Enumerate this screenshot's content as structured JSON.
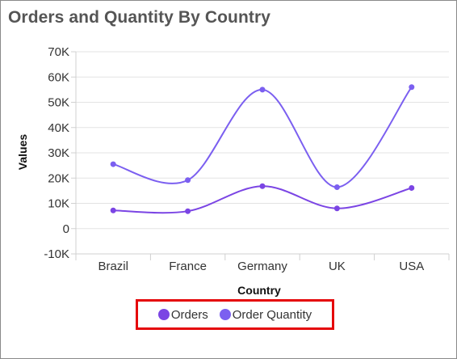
{
  "title": "Orders and Quantity By Country",
  "chart_data": {
    "type": "line",
    "title": "Orders and Quantity By Country",
    "xlabel": "Country",
    "ylabel": "Values",
    "categories": [
      "Brazil",
      "France",
      "Germany",
      "UK",
      "USA"
    ],
    "ylim": [
      -10000,
      70000
    ],
    "yticks": [
      -10000,
      0,
      10000,
      20000,
      30000,
      40000,
      50000,
      60000,
      70000
    ],
    "ytick_labels": [
      "-10K",
      "0",
      "10K",
      "20K",
      "30K",
      "40K",
      "50K",
      "60K",
      "70K"
    ],
    "grid": true,
    "smooth": true,
    "series": [
      {
        "name": "Orders",
        "values": [
          7200,
          6900,
          16800,
          8000,
          16100
        ],
        "color": "#7b45e4"
      },
      {
        "name": "Order Quantity",
        "values": [
          25500,
          19200,
          55000,
          16400,
          56000
        ],
        "color": "#7b5ff0"
      }
    ],
    "legend_position": "bottom"
  }
}
